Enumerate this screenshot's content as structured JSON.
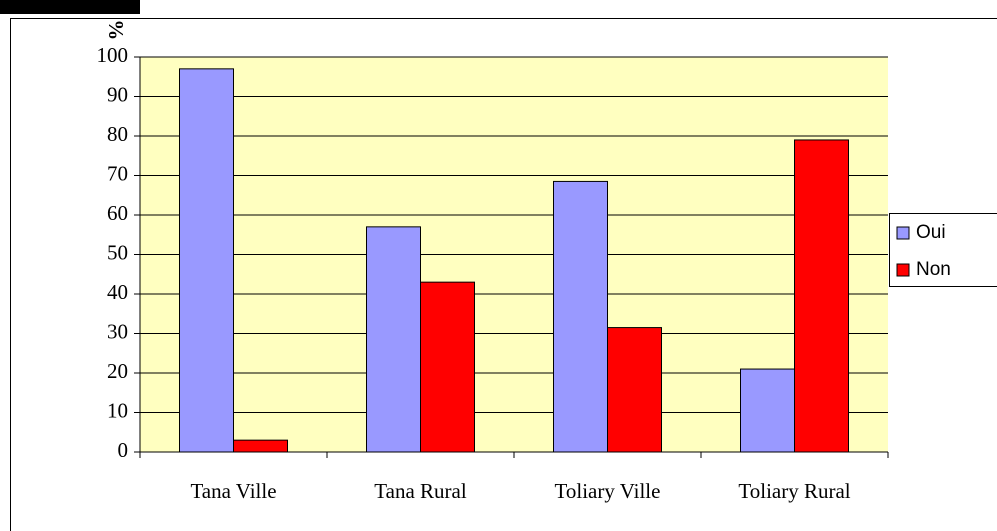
{
  "chart_data": {
    "type": "bar",
    "y_axis_label": "%",
    "categories": [
      "Tana Ville",
      "Tana Rural",
      "Toliary Ville",
      "Toliary Rural"
    ],
    "series": [
      {
        "name": "Oui",
        "color": "#9999ff",
        "values": [
          97,
          57,
          68.5,
          21
        ]
      },
      {
        "name": "Non",
        "color": "#ff0000",
        "values": [
          3,
          43,
          31.5,
          79
        ]
      }
    ],
    "ylim": [
      0,
      100
    ],
    "yticks": [
      0,
      10,
      20,
      30,
      40,
      50,
      60,
      70,
      80,
      90,
      100
    ],
    "grid": true,
    "legend": "right",
    "plot_background": "#ffffc0"
  }
}
